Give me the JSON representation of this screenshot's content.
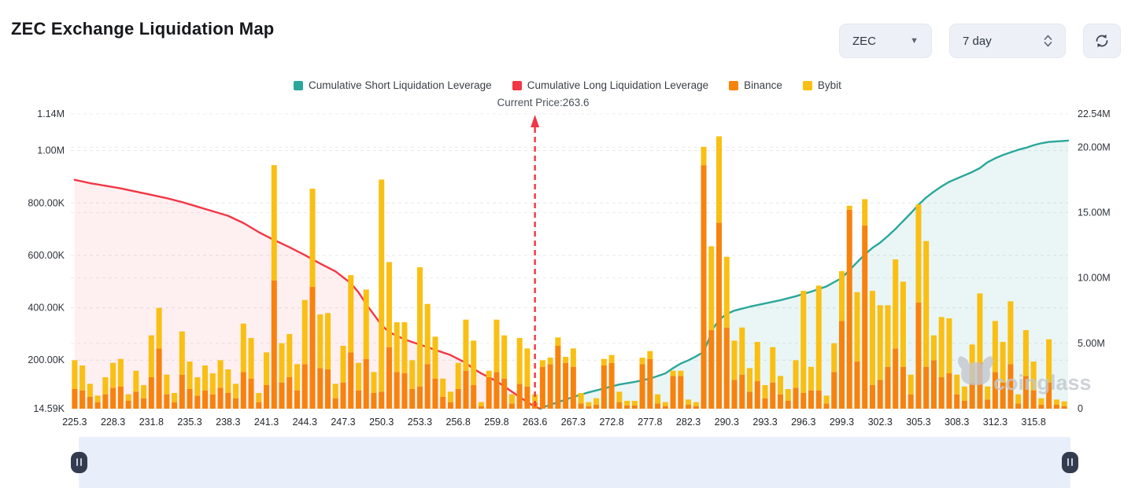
{
  "header": {
    "title": "ZEC Exchange Liquidation Map",
    "coin_select": "ZEC",
    "range_select": "7 day"
  },
  "legend": [
    {
      "label": "Cumulative Short Liquidation Leverage",
      "color": "#2aa79a"
    },
    {
      "label": "Cumulative Long Liquidation Leverage",
      "color": "#f23645"
    },
    {
      "label": "Binance",
      "color": "#f7820d"
    },
    {
      "label": "Bybit",
      "color": "#f9bf13"
    }
  ],
  "annotation": {
    "current_price_label": "Current Price:263.6",
    "current_price": 263.6
  },
  "watermark": {
    "text": "coinglass",
    "color": "#c3c7cf"
  },
  "chart_data": {
    "type": "bar+line",
    "title": "ZEC Exchange Liquidation Map",
    "grid": "dashed",
    "x_ticks": [
      "225.3",
      "228.3",
      "231.8",
      "235.3",
      "238.3",
      "241.3",
      "244.3",
      "247.3",
      "250.3",
      "253.3",
      "256.8",
      "259.8",
      "263.6",
      "267.3",
      "272.8",
      "277.8",
      "282.3",
      "290.3",
      "293.3",
      "296.3",
      "299.3",
      "302.3",
      "305.3",
      "308.3",
      "312.3",
      "315.8"
    ],
    "bars_per_tick": 5,
    "current_price": {
      "value": 263.6,
      "tick_index": 12,
      "line_color": "#f23645"
    },
    "left_axis": {
      "labels": [
        "14.59K",
        "200.00K",
        "400.00K",
        "600.00K",
        "800.00K",
        "1.00M",
        "1.14M"
      ],
      "values_k": [
        14.59,
        200,
        400,
        600,
        800,
        1000,
        1140
      ]
    },
    "right_axis": {
      "labels": [
        "0",
        "5.00M",
        "10.00M",
        "15.00M",
        "20.00M",
        "22.54M"
      ],
      "values_m": [
        0,
        5,
        10,
        15,
        20,
        22.54
      ]
    },
    "bar_series": [
      {
        "name": "Binance",
        "color": "#f7820d",
        "unit": "thousands (left axis)",
        "values": [
          75,
          70,
          45,
          25,
          55,
          80,
          85,
          30,
          65,
          40,
          120,
          230,
          55,
          25,
          130,
          75,
          50,
          70,
          55,
          80,
          60,
          40,
          140,
          115,
          25,
          90,
          490,
          100,
          120,
          70,
          170,
          465,
          155,
          150,
          40,
          100,
          215,
          70,
          190,
          60,
          65,
          235,
          140,
          135,
          75,
          85,
          170,
          115,
          45,
          25,
          75,
          145,
          90,
          10,
          120,
          140,
          115,
          20,
          95,
          85,
          25,
          160,
          170,
          240,
          175,
          160,
          20,
          10,
          15,
          165,
          175,
          25,
          12,
          12,
          170,
          190,
          20,
          10,
          125,
          125,
          15,
          10,
          930,
          300,
          710,
          310,
          110,
          130,
          65,
          105,
          40,
          100,
          55,
          30,
          80,
          60,
          70,
          70,
          20,
          140,
          335,
          760,
          180,
          700,
          90,
          110,
          160,
          230,
          160,
          55,
          405,
          160,
          185,
          120,
          135,
          55,
          30,
          100,
          175,
          35,
          140,
          100,
          170,
          20,
          125,
          70,
          15,
          100,
          15,
          10
        ]
      },
      {
        "name": "Bybit",
        "color": "#f9bf13",
        "unit": "thousands (left axis)",
        "values": [
          110,
          95,
          50,
          25,
          65,
          95,
          105,
          25,
          80,
          50,
          160,
          155,
          75,
          35,
          165,
          105,
          70,
          95,
          80,
          105,
          90,
          55,
          185,
          155,
          35,
          125,
          440,
          150,
          165,
          100,
          245,
          375,
          205,
          215,
          55,
          140,
          295,
          105,
          265,
          80,
          810,
          325,
          190,
          195,
          110,
          455,
          230,
          160,
          70,
          40,
          100,
          195,
          170,
          15,
          25,
          200,
          165,
          35,
          175,
          145,
          30,
          25,
          25,
          32,
          23,
          70,
          40,
          15,
          25,
          25,
          30,
          40,
          18,
          18,
          25,
          30,
          35,
          15,
          20,
          20,
          20,
          15,
          70,
          320,
          330,
          270,
          150,
          180,
          90,
          150,
          50,
          135,
          70,
          45,
          105,
          390,
          90,
          400,
          30,
          110,
          190,
          15,
          265,
          100,
          360,
          285,
          235,
          340,
          325,
          75,
          375,
          480,
          95,
          230,
          210,
          75,
          55,
          145,
          265,
          50,
          195,
          155,
          240,
          35,
          175,
          110,
          25,
          165,
          20,
          18
        ]
      }
    ],
    "line_series": [
      {
        "name": "Cumulative Long Liquidation Leverage",
        "color": "#f23645",
        "area": "rgba(242,54,69,0.08)",
        "points_in_millions": [
          [
            0,
            17.5
          ],
          [
            2,
            17.25
          ],
          [
            4,
            17.05
          ],
          [
            6,
            16.85
          ],
          [
            8,
            16.6
          ],
          [
            10,
            16.35
          ],
          [
            12,
            16.1
          ],
          [
            14,
            15.8
          ],
          [
            16,
            15.45
          ],
          [
            18,
            15.1
          ],
          [
            20,
            14.75
          ],
          [
            22,
            14.2
          ],
          [
            24,
            13.5
          ],
          [
            26,
            12.9
          ],
          [
            28,
            12.35
          ],
          [
            30,
            11.75
          ],
          [
            32,
            11.1
          ],
          [
            34,
            10.5
          ],
          [
            36,
            9.6
          ],
          [
            37,
            8.9
          ],
          [
            38,
            8.0
          ],
          [
            39,
            7.2
          ],
          [
            40,
            6.4
          ],
          [
            41,
            5.85
          ],
          [
            43,
            5.3
          ],
          [
            45,
            4.9
          ],
          [
            47,
            4.5
          ],
          [
            49,
            4.1
          ],
          [
            51,
            3.5
          ],
          [
            52,
            3.05
          ],
          [
            53,
            2.7
          ],
          [
            54,
            2.4
          ],
          [
            55,
            2.1
          ],
          [
            56,
            1.7
          ],
          [
            57,
            1.3
          ],
          [
            58,
            0.9
          ],
          [
            59,
            0.5
          ],
          [
            60,
            0.15
          ],
          [
            60.7,
            0
          ]
        ]
      },
      {
        "name": "Cumulative Short Liquidation Leverage",
        "color": "#2aa79a",
        "area": "rgba(42,167,154,0.10)",
        "points_in_millions": [
          [
            60.7,
            0
          ],
          [
            61.5,
            0.2
          ],
          [
            63,
            0.5
          ],
          [
            65,
            0.9
          ],
          [
            67,
            1.25
          ],
          [
            69,
            1.55
          ],
          [
            71,
            1.85
          ],
          [
            73,
            2.05
          ],
          [
            75,
            2.3
          ],
          [
            77,
            2.7
          ],
          [
            78,
            3.1
          ],
          [
            79,
            3.45
          ],
          [
            80,
            3.7
          ],
          [
            81,
            4.0
          ],
          [
            82,
            4.35
          ],
          [
            82.6,
            5.2
          ],
          [
            83.2,
            6.1
          ],
          [
            84,
            6.8
          ],
          [
            85,
            7.25
          ],
          [
            86,
            7.5
          ],
          [
            88,
            7.8
          ],
          [
            90,
            8.05
          ],
          [
            92,
            8.3
          ],
          [
            94,
            8.6
          ],
          [
            96,
            8.95
          ],
          [
            98,
            9.35
          ],
          [
            100,
            10.0
          ],
          [
            101,
            10.6
          ],
          [
            102,
            11.2
          ],
          [
            103,
            11.8
          ],
          [
            104,
            12.3
          ],
          [
            105,
            12.7
          ],
          [
            106,
            13.2
          ],
          [
            107,
            13.75
          ],
          [
            108,
            14.35
          ],
          [
            109,
            14.95
          ],
          [
            110,
            15.6
          ],
          [
            111,
            16.15
          ],
          [
            112,
            16.6
          ],
          [
            113,
            17.0
          ],
          [
            114,
            17.35
          ],
          [
            115,
            17.6
          ],
          [
            116,
            17.85
          ],
          [
            117,
            18.1
          ],
          [
            118,
            18.4
          ],
          [
            119,
            18.85
          ],
          [
            120,
            19.15
          ],
          [
            121,
            19.4
          ],
          [
            122,
            19.6
          ],
          [
            123,
            19.8
          ],
          [
            124,
            19.95
          ],
          [
            125,
            20.15
          ],
          [
            126,
            20.3
          ],
          [
            127,
            20.4
          ],
          [
            129.5,
            20.5
          ]
        ]
      }
    ]
  }
}
